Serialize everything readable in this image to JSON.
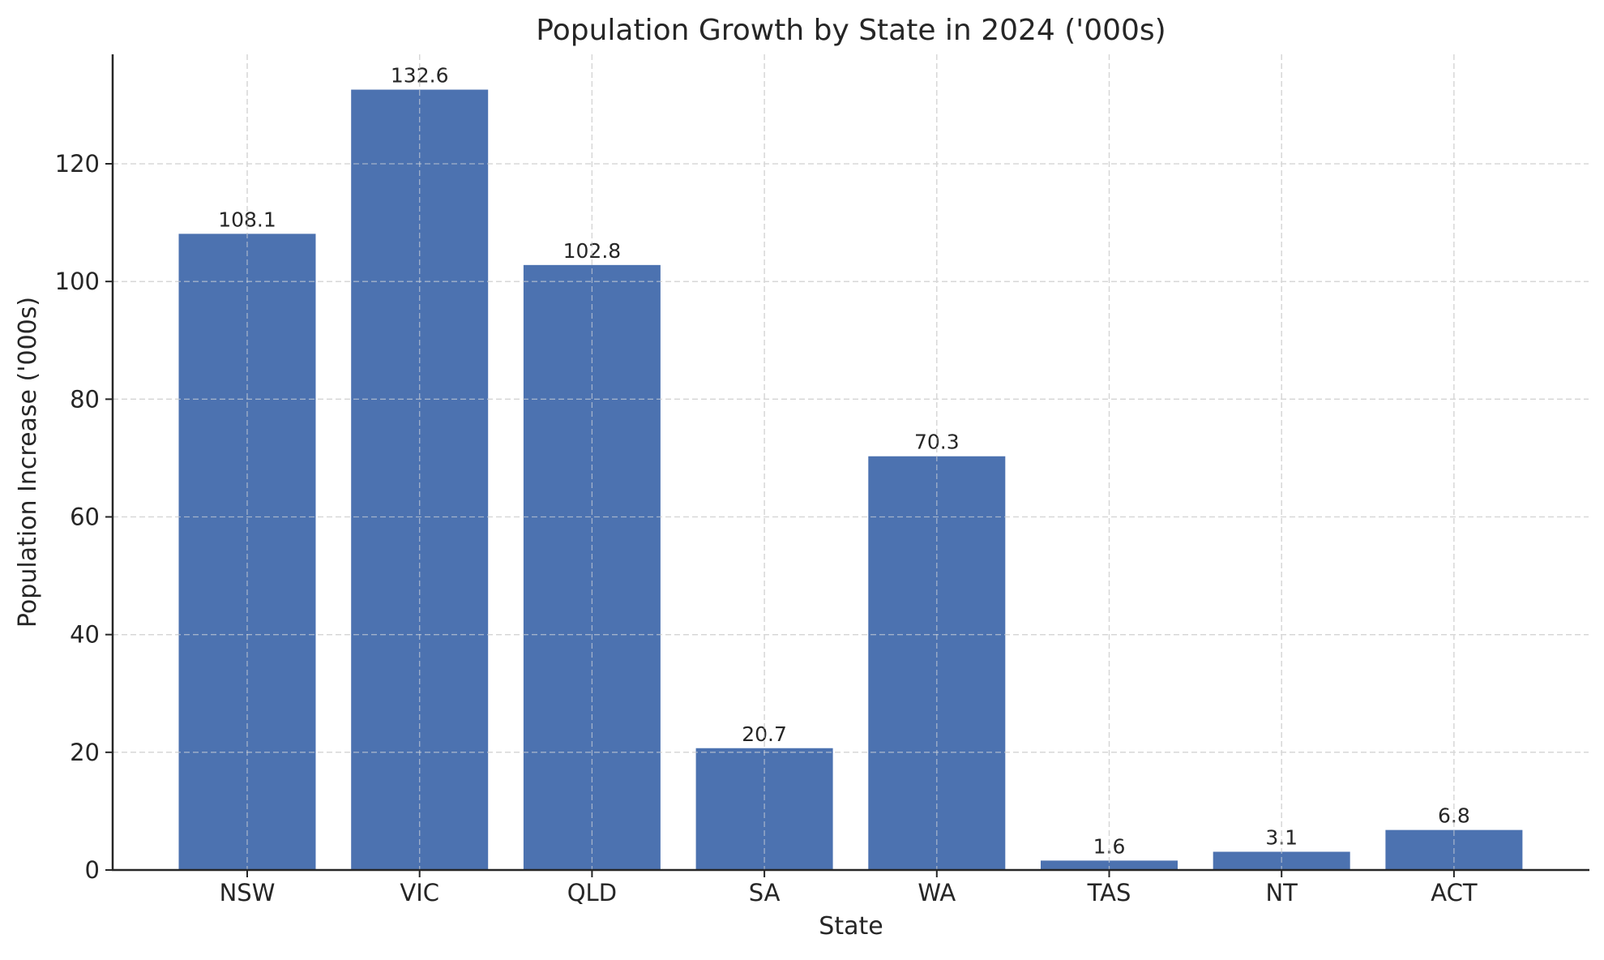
{
  "chart_data": {
    "type": "bar",
    "title": "Population Growth by State in 2024 ('000s)",
    "xlabel": "State",
    "ylabel": "Population Increase ('000s)",
    "categories": [
      "NSW",
      "VIC",
      "QLD",
      "SA",
      "WA",
      "TAS",
      "NT",
      "ACT"
    ],
    "values": [
      108.1,
      132.6,
      102.8,
      20.7,
      70.3,
      1.6,
      3.1,
      6.8
    ],
    "value_labels": [
      "108.1",
      "132.6",
      "102.8",
      "20.7",
      "70.3",
      "1.6",
      "3.1",
      "6.8"
    ],
    "ylim": [
      0,
      138.6
    ],
    "yticks": [
      0,
      20,
      40,
      60,
      80,
      100,
      120
    ],
    "ytick_labels": [
      "0",
      "20",
      "40",
      "60",
      "80",
      "100",
      "120"
    ],
    "grid": true,
    "bar_color": "#4c72b0",
    "grid_color": "#cccccc"
  }
}
